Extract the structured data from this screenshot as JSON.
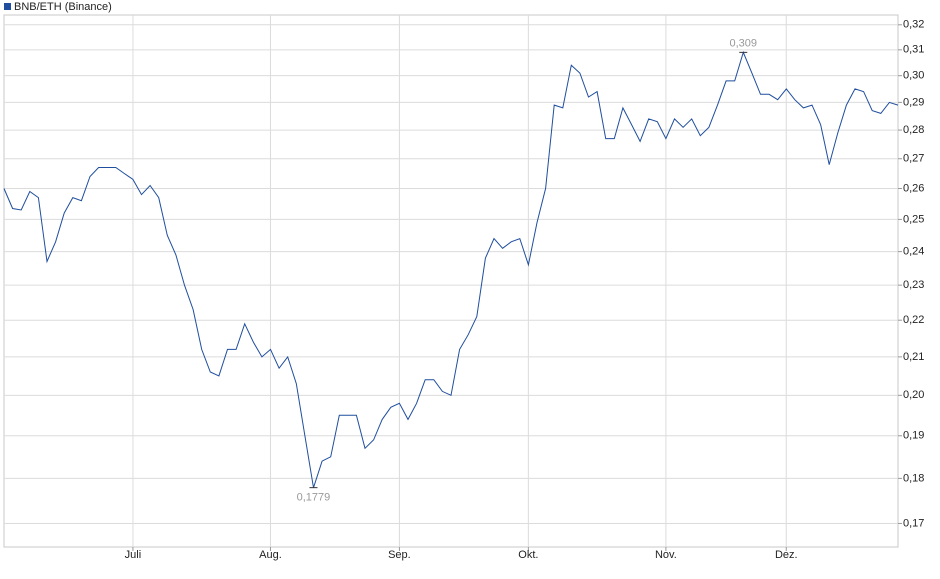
{
  "chart_data": {
    "type": "line",
    "log_scale": true,
    "grid": true,
    "categories": [
      null,
      null,
      null,
      null,
      null,
      null,
      null,
      null,
      null,
      null,
      null,
      null,
      null,
      null,
      null,
      "Juli",
      null,
      null,
      null,
      null,
      null,
      null,
      null,
      null,
      null,
      null,
      null,
      null,
      null,
      null,
      null,
      "Aug.",
      null,
      null,
      null,
      null,
      null,
      null,
      null,
      null,
      null,
      null,
      null,
      null,
      null,
      null,
      "Sep.",
      null,
      null,
      null,
      null,
      null,
      null,
      null,
      null,
      null,
      null,
      null,
      null,
      null,
      null,
      "Okt.",
      null,
      null,
      null,
      null,
      null,
      null,
      null,
      null,
      null,
      null,
      null,
      null,
      null,
      null,
      null,
      "Nov.",
      null,
      null,
      null,
      null,
      null,
      null,
      null,
      null,
      null,
      null,
      null,
      null,
      null,
      "Dez.",
      null,
      null,
      null,
      null,
      null,
      null,
      null,
      null,
      null,
      null,
      null,
      null,
      null
    ],
    "series": [
      {
        "name": "BNB/ETH (Binance)",
        "color": "#1f4e9e",
        "values": [
          0.26,
          0.2535,
          0.253,
          0.259,
          0.257,
          0.237,
          0.243,
          0.252,
          0.257,
          0.256,
          0.264,
          0.267,
          0.267,
          0.267,
          0.265,
          0.263,
          0.258,
          0.261,
          0.257,
          0.245,
          0.239,
          0.23,
          0.223,
          0.212,
          0.206,
          0.205,
          0.212,
          0.212,
          0.219,
          0.214,
          0.21,
          0.212,
          0.207,
          0.21,
          0.203,
          0.19,
          0.1779,
          0.184,
          0.185,
          0.195,
          0.195,
          0.195,
          0.187,
          0.189,
          0.194,
          0.197,
          0.198,
          0.194,
          0.198,
          0.204,
          0.204,
          0.201,
          0.2,
          0.212,
          0.216,
          0.221,
          0.238,
          0.244,
          0.241,
          0.243,
          0.244,
          0.236,
          0.249,
          0.26,
          0.289,
          0.288,
          0.304,
          0.301,
          0.292,
          0.294,
          0.277,
          0.277,
          0.288,
          0.282,
          0.276,
          0.284,
          0.283,
          0.277,
          0.284,
          0.281,
          0.284,
          0.278,
          0.281,
          0.289,
          0.298,
          0.298,
          0.309,
          0.301,
          0.293,
          0.293,
          0.291,
          0.295,
          0.291,
          0.288,
          0.289,
          0.282,
          0.268,
          0.279,
          0.289,
          0.295,
          0.294,
          0.287,
          0.286,
          0.29,
          0.289
        ],
        "value_labels": [
          null,
          null,
          null,
          null,
          null,
          null,
          null,
          null,
          null,
          null,
          null,
          null,
          null,
          null,
          null,
          null,
          null,
          null,
          null,
          null,
          null,
          null,
          null,
          null,
          null,
          null,
          null,
          null,
          null,
          null,
          null,
          null,
          null,
          null,
          null,
          null,
          "0,1779",
          null,
          null,
          null,
          null,
          null,
          null,
          null,
          null,
          null,
          null,
          null,
          null,
          null,
          null,
          null,
          null,
          null,
          null,
          null,
          null,
          null,
          null,
          null,
          null,
          null,
          null,
          null,
          null,
          null,
          null,
          null,
          null,
          null,
          null,
          null,
          null,
          null,
          null,
          null,
          null,
          null,
          null,
          null,
          null,
          null,
          null,
          null,
          null,
          null,
          "0,309",
          null,
          null,
          null,
          null,
          null,
          null,
          null,
          null,
          null,
          null,
          null,
          null,
          null,
          null,
          null,
          null,
          null
        ]
      }
    ],
    "ylim": [
      0.165,
      0.324
    ],
    "yticks": [
      {
        "value": 0.17,
        "label": "0,17"
      },
      {
        "value": 0.18,
        "label": "0,18"
      },
      {
        "value": 0.19,
        "label": "0,19"
      },
      {
        "value": 0.2,
        "label": "0,20"
      },
      {
        "value": 0.21,
        "label": "0,21"
      },
      {
        "value": 0.22,
        "label": "0,22"
      },
      {
        "value": 0.23,
        "label": "0,23"
      },
      {
        "value": 0.24,
        "label": "0,24"
      },
      {
        "value": 0.25,
        "label": "0,25"
      },
      {
        "value": 0.26,
        "label": "0,26"
      },
      {
        "value": 0.27,
        "label": "0,27"
      },
      {
        "value": 0.28,
        "label": "0,28"
      },
      {
        "value": 0.29,
        "label": "0,29"
      },
      {
        "value": 0.3,
        "label": "0,30"
      },
      {
        "value": 0.31,
        "label": "0,31"
      },
      {
        "value": 0.32,
        "label": "0,32"
      }
    ]
  }
}
